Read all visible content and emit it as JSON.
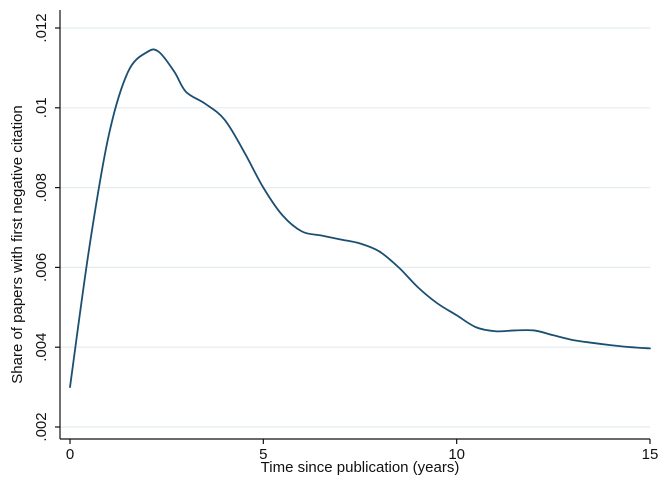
{
  "chart_data": {
    "type": "line",
    "xlabel": "Time since publication (years)",
    "ylabel": "Share of papers with first negative citation",
    "xlim": [
      0,
      15
    ],
    "ylim": [
      0.002,
      0.012
    ],
    "x_ticks": [
      {
        "value": 0,
        "label": "0"
      },
      {
        "value": 5,
        "label": "5"
      },
      {
        "value": 10,
        "label": "10"
      },
      {
        "value": 15,
        "label": "15"
      }
    ],
    "y_ticks": [
      {
        "value": 0.002,
        "label": ".002"
      },
      {
        "value": 0.004,
        "label": ".004"
      },
      {
        "value": 0.006,
        "label": ".006"
      },
      {
        "value": 0.008,
        "label": ".008"
      },
      {
        "value": 0.01,
        "label": ".01"
      },
      {
        "value": 0.012,
        "label": ".012"
      }
    ],
    "grid": true,
    "series": [
      {
        "color": "#1b4f72",
        "x": [
          0,
          0.5,
          1,
          1.5,
          2,
          2.3,
          2.7,
          3,
          3.5,
          4,
          4.5,
          5,
          5.5,
          6,
          6.5,
          7,
          7.5,
          8,
          8.5,
          9,
          9.5,
          10,
          10.5,
          11,
          11.5,
          12,
          12.5,
          13,
          13.5,
          14,
          14.5,
          15
        ],
        "y": [
          0.003,
          0.0065,
          0.0093,
          0.0109,
          0.0114,
          0.0114,
          0.0109,
          0.0104,
          0.0101,
          0.0097,
          0.0089,
          0.008,
          0.0073,
          0.0069,
          0.0068,
          0.0067,
          0.0066,
          0.0064,
          0.006,
          0.0055,
          0.0051,
          0.0048,
          0.0045,
          0.0044,
          0.00442,
          0.00442,
          0.0043,
          0.00418,
          0.00411,
          0.00405,
          0.004,
          0.00397
        ]
      }
    ]
  }
}
